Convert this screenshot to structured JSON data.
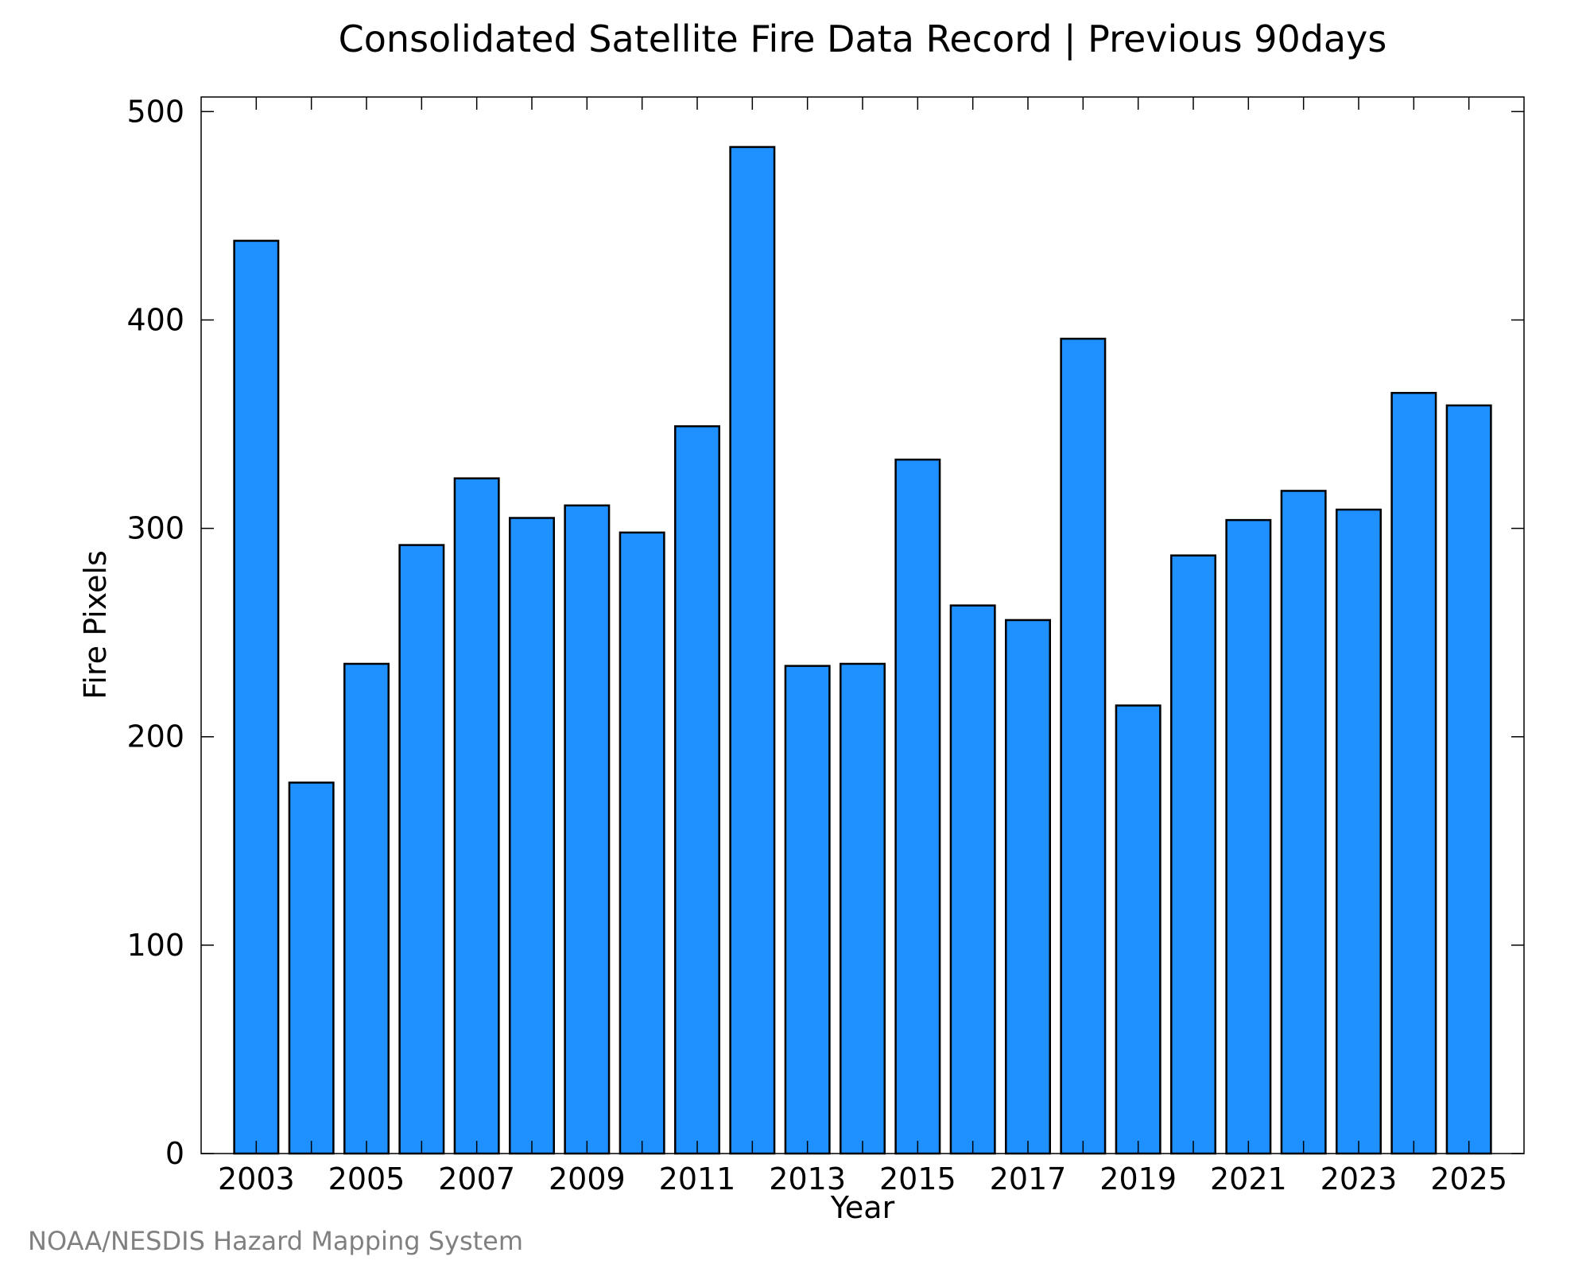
{
  "chart_data": {
    "type": "bar",
    "title": "Consolidated Satellite Fire Data Record | Previous 90days",
    "xlabel": "Year",
    "ylabel": "Fire Pixels",
    "credit": "NOAA/NESDIS Hazard Mapping System",
    "categories": [
      2003,
      2004,
      2005,
      2006,
      2007,
      2008,
      2009,
      2010,
      2011,
      2012,
      2013,
      2014,
      2015,
      2016,
      2017,
      2018,
      2019,
      2020,
      2021,
      2022,
      2023,
      2024,
      2025
    ],
    "values": [
      438,
      178,
      235,
      292,
      324,
      305,
      311,
      298,
      349,
      483,
      234,
      235,
      333,
      263,
      256,
      391,
      215,
      287,
      304,
      318,
      309,
      365,
      359
    ],
    "x_tick_labels": [
      "2003",
      "2005",
      "2007",
      "2009",
      "2011",
      "2013",
      "2015",
      "2017",
      "2019",
      "2021",
      "2023",
      "2025"
    ],
    "y_ticks": [
      0,
      100,
      200,
      300,
      400,
      500
    ],
    "xlim": [
      2002,
      2026
    ],
    "ylim": [
      0,
      507
    ],
    "grid": false,
    "legend": "none",
    "bar_color": "#1e90ff",
    "bar_edge_color": "#000000"
  }
}
